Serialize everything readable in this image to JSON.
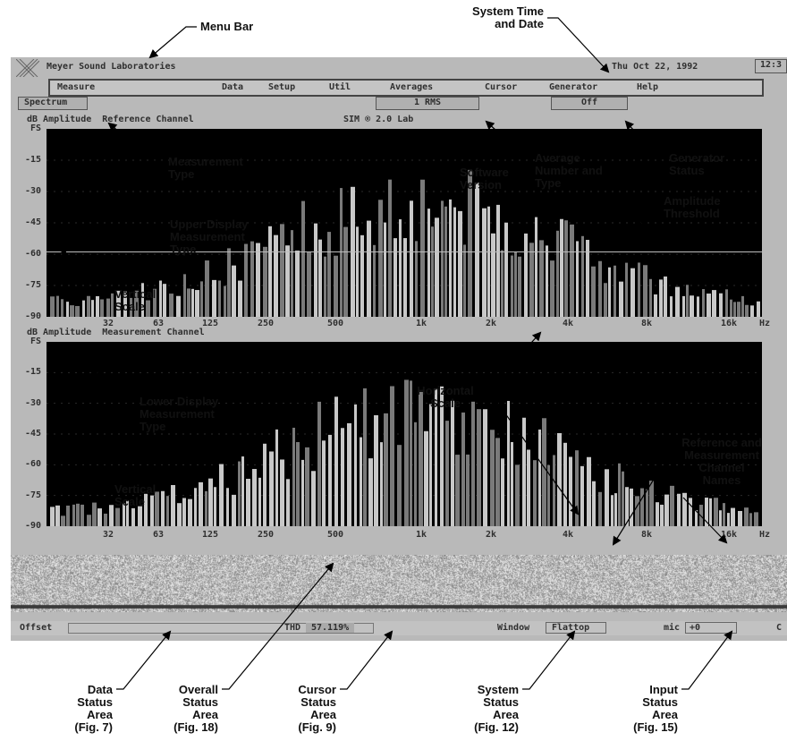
{
  "app": {
    "title": "Meyer Sound Laboratories",
    "datetime": "Thu Oct 22, 1992",
    "clock": "12:3"
  },
  "menu": {
    "items": [
      "Measure",
      "Data",
      "Setup",
      "Util",
      "Averages",
      "Cursor",
      "Generator",
      "Help"
    ]
  },
  "status_row": {
    "measurement_type": "Spectrum",
    "averages": "1  RMS",
    "generator": "Off"
  },
  "upper": {
    "label": "dB Amplitude  Reference Channel",
    "version": "SIM ® 2.0 Lab"
  },
  "lower": {
    "label": "dB Amplitude  Measurement Channel"
  },
  "y_ticks": [
    "FS",
    "-15",
    "-30",
    "-45",
    "-60",
    "-75",
    "-90"
  ],
  "x_ticks": [
    "32",
    "63",
    "125",
    "250",
    "500",
    "1k",
    "2k",
    "4k",
    "8k",
    "16k",
    "Hz"
  ],
  "bottom": {
    "offset": "Offset",
    "thd_label": "THD",
    "thd_value": "57.119%",
    "window_label": "Window",
    "window_value": "Flattop",
    "input_label": "mic",
    "input_value": "+0",
    "channel_c": "C"
  },
  "callouts": {
    "menu_bar": "Menu Bar",
    "system_time": "System Time\nand Date",
    "measurement_type": "Measurement\nType",
    "upper_display": "Upper Display\nMeasurement\nType",
    "vertical_scale": "Vertical\nScale",
    "software_version": "Software\nVersion",
    "average": "Average\nNumber and\nType",
    "generator": "Generator\nStatus",
    "amplitude_threshold": "Amplitude\nThreshold",
    "lower_display": "Lower Display\nMeasurement\nType",
    "horizontal_scale": "Horizontal\nScale",
    "channel_names": "Reference and\nMeasurement\nChannel\nNames",
    "vertical_scale_2": "Vertical\nScale",
    "data_status": "Data\nStatus\nArea\n(Fig. 7)",
    "overall_status": "Overall\nStatus\nArea\n(Fig. 18)",
    "cursor_status": "Cursor\nStatus\nArea\n(Fig. 9)",
    "system_status": "System\nStatus\nArea\n(Fig. 12)",
    "input_status": "Input\nStatus\nArea\n(Fig. 15)"
  },
  "colors": {
    "screen": "#b9b9b9",
    "plot_bg": "#000000",
    "bar_light": "#c8c8c8",
    "bar_dark": "#7a7a7a",
    "text": "#2f2f2f"
  }
}
